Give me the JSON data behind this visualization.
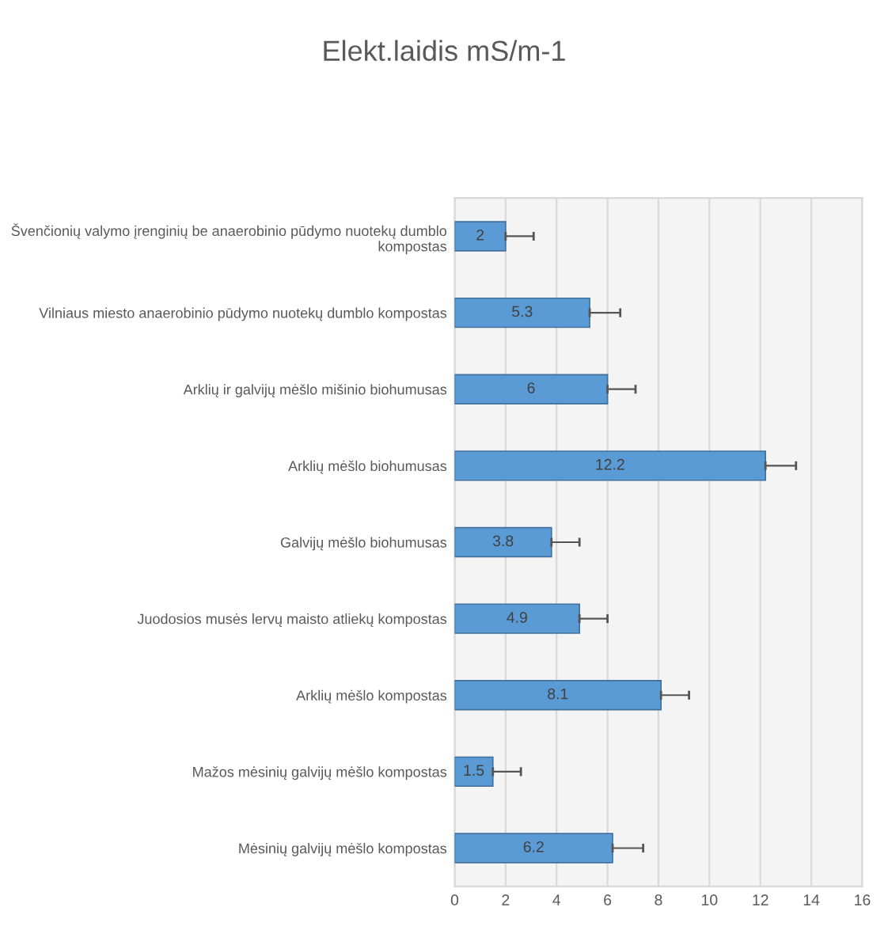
{
  "chart_data": {
    "type": "bar",
    "orientation": "horizontal",
    "title": "Elekt.laidis mS/m-1",
    "categories": [
      "Švenčionių valymo įrenginių be anaerobinio pūdymo nuotekų dumblo kompostas",
      "Vilniaus miesto anaerobinio pūdymo nuotekų dumblo kompostas",
      "Arklių ir galvijų mėšlo mišinio biohumusas",
      "Arklių mėšlo biohumusas",
      "Galvijų mėšlo biohumusas",
      "Juodosios musės lervų maisto atliekų kompostas",
      "Arklių mėšlo kompostas",
      "Mažos mėsinių galvijų mėšlo kompostas",
      "Mėsinių galvijų mėšlo kompostas"
    ],
    "values": [
      2,
      5.3,
      6,
      12.2,
      3.8,
      4.9,
      8.1,
      1.5,
      6.2
    ],
    "errors": [
      [
        2,
        3.1
      ],
      [
        5.3,
        6.5
      ],
      [
        6,
        7.1
      ],
      [
        12.2,
        13.4
      ],
      [
        3.8,
        4.9
      ],
      [
        4.9,
        6
      ],
      [
        8.1,
        9.2
      ],
      [
        1.5,
        2.6
      ],
      [
        6.2,
        7.4
      ]
    ],
    "color": "#5b9bd5",
    "data_labels": true,
    "xlim": [
      0,
      16
    ],
    "xticks": [
      0,
      2,
      4,
      6,
      8,
      10,
      12,
      14,
      16
    ],
    "grid": "x"
  }
}
